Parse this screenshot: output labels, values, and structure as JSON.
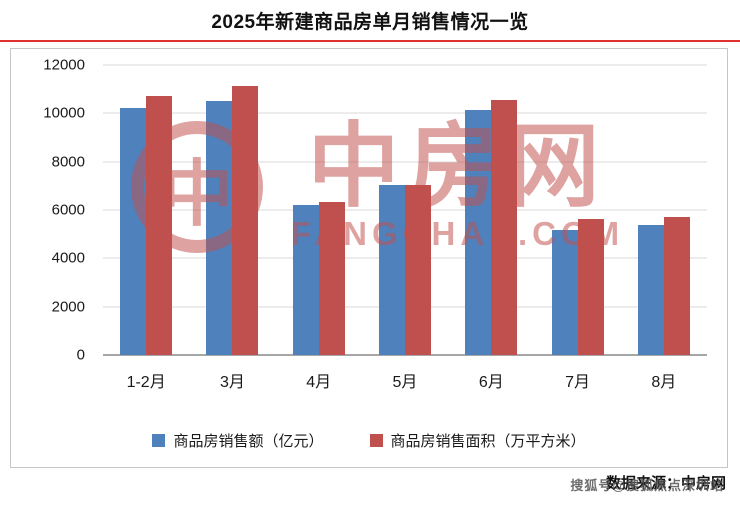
{
  "title": "2025年新建商品房单月销售情况一览",
  "chart_data": {
    "type": "bar",
    "categories": [
      "1-2月",
      "3月",
      "4月",
      "5月",
      "6月",
      "7月",
      "8月"
    ],
    "series": [
      {
        "name": "商品房销售额（亿元）",
        "color": "#4f81bd",
        "values": [
          10220,
          10500,
          6220,
          7030,
          10140,
          5170,
          5380
        ]
      },
      {
        "name": "商品房销售面积（万平方米）",
        "color": "#c0504d",
        "values": [
          10700,
          11120,
          6340,
          7030,
          10550,
          5640,
          5720
        ]
      }
    ],
    "title": "2025年新建商品房单月销售情况一览",
    "xlabel": "",
    "ylabel": "",
    "ylim": [
      0,
      12000
    ],
    "ytick_step": 2000,
    "grid": true,
    "legend_position": "bottom"
  },
  "watermark": {
    "logo_glyph": "中",
    "logo_text": "中房网",
    "subtext": "FANGCHAN.COM",
    "color": "#c0504d"
  },
  "footer": {
    "source": "数据来源：中房网",
    "watermark_text": "搜狐号@搜狐焦点深圳站"
  },
  "colors": {
    "title_rule": "#e03131",
    "gridline": "#d9d9d9",
    "axis": "#4d4d4d"
  }
}
